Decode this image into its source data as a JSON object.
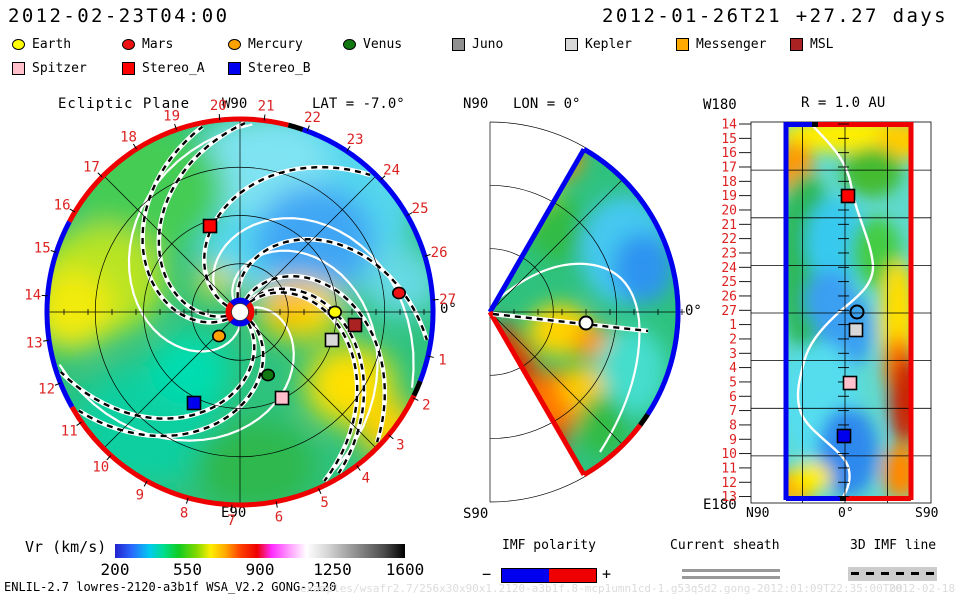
{
  "header": {
    "left_datetime": "2012-02-23T04:00",
    "right_datetime": "2012-01-26T21 +27.27 days"
  },
  "legend": {
    "row1": [
      {
        "label": "Earth",
        "color": "#ffff00",
        "shape": "circle"
      },
      {
        "label": "Mars",
        "color": "#ee1111",
        "shape": "circle"
      },
      {
        "label": "Mercury",
        "color": "#ffa200",
        "shape": "circle"
      },
      {
        "label": "Venus",
        "color": "#117711",
        "shape": "circle"
      },
      {
        "label": "Juno",
        "color": "#909090",
        "shape": "square"
      },
      {
        "label": "Kepler",
        "color": "#d8d8d8",
        "shape": "square"
      },
      {
        "label": "Messenger",
        "color": "#ffaa00",
        "shape": "square"
      },
      {
        "label": "MSL",
        "color": "#aa2222",
        "shape": "square"
      }
    ],
    "row2": [
      {
        "label": "Spitzer",
        "color": "#ffc0cb",
        "shape": "square"
      },
      {
        "label": "Stereo_A",
        "color": "#ff0000",
        "shape": "square"
      },
      {
        "label": "Stereo_B",
        "color": "#0000ee",
        "shape": "square"
      }
    ]
  },
  "panels": {
    "ecliptic": {
      "title": "Ecliptic Plane",
      "lat_label": "LAT = -7.0°",
      "top_label": "W90",
      "bottom_label": "E90",
      "zero_label": "0°",
      "days": [
        "1",
        "2",
        "3",
        "4",
        "5",
        "6",
        "7",
        "8",
        "9",
        "10",
        "11",
        "12",
        "13",
        "14",
        "15",
        "16",
        "17",
        "18",
        "19",
        "20",
        "21",
        "22",
        "23",
        "24",
        "25",
        "26",
        "27"
      ]
    },
    "meridional": {
      "top_label": "N90",
      "lon_label": "LON = 0°",
      "bottom_label": "S90",
      "zero_label": "0°"
    },
    "radial": {
      "title": "R = 1.0 AU",
      "top_left_label": "W180",
      "bottom_left_label": "E180",
      "x_labels": [
        "N90",
        "0°",
        "S90"
      ],
      "days": [
        "14",
        "15",
        "16",
        "17",
        "18",
        "19",
        "20",
        "21",
        "22",
        "23",
        "24",
        "25",
        "26",
        "27",
        "1",
        "2",
        "3",
        "4",
        "5",
        "6",
        "7",
        "8",
        "9",
        "10",
        "11",
        "12",
        "13"
      ]
    }
  },
  "colorbar": {
    "label": "Vr (km/s)",
    "ticks": [
      "200",
      "550",
      "900",
      "1250",
      "1600"
    ]
  },
  "legend2": {
    "imf_title": "IMF polarity",
    "minus": "−",
    "plus": "+",
    "sheath_title": "Current sheath",
    "imf_line_title": "3D IMF line"
  },
  "footer": {
    "model": "ENLIL-2.7 lowres-2120-a3b1f WSA_V2.2 GONG-2120",
    "watermark": "examples/wsafr2.7/256x30x90x1.2120-a3b1f.8-mcp1umn1cd-1.g53q5d2.gong-2012:01:09T22:35:00T00",
    "watermark_date": "2012-02-18"
  },
  "chart_data": [
    {
      "type": "heatmap",
      "id": "ecliptic_plane",
      "title": "Ecliptic Plane",
      "projection": "polar",
      "lat_deg": -7.0,
      "radial_range_au": [
        0,
        2
      ],
      "angular_axis": "day-of-rotation labels 1-27, 0° reference toward Earth at right",
      "quantity": "Vr",
      "units": "km/s",
      "value_range": [
        200,
        1600
      ],
      "rim_polarity_segments": [
        {
          "days": "15.8-21.5",
          "polarity": "+",
          "color": "#ee0000"
        },
        {
          "days": "21.9-1.6",
          "polarity": "−",
          "color": "#0000ee"
        },
        {
          "days": "2.0-11.4",
          "polarity": "+",
          "color": "#ee0000"
        },
        {
          "days": "11.4-15.8",
          "polarity": "−",
          "color": "#0000ee"
        }
      ],
      "markers": [
        {
          "name": "Earth",
          "r_au": 1.0,
          "angle_deg": 0
        },
        {
          "name": "Mars",
          "r_au": 1.66,
          "angle_deg": -7
        },
        {
          "name": "Mercury",
          "r_au": 0.33,
          "angle_deg": 131
        },
        {
          "name": "Venus",
          "r_au": 0.71,
          "angle_deg": 66
        },
        {
          "name": "Kepler",
          "r_au": 1.0,
          "angle_deg": 17
        },
        {
          "name": "MSL",
          "r_au": 1.2,
          "angle_deg": 6
        },
        {
          "name": "Spitzer",
          "r_au": 0.99,
          "angle_deg": 64
        },
        {
          "name": "Stereo_A",
          "r_au": 0.94,
          "angle_deg": -109
        },
        {
          "name": "Stereo_B",
          "r_au": 1.06,
          "angle_deg": 117
        }
      ],
      "features": [
        "Parker-spiral 3D IMF lines (black dashed on white)",
        "current sheath contours (solid white)",
        "slow wind 200-450 km/s (blue/cyan) in NE sector",
        "fast streams 650-800 km/s (yellow/orange) near Earth line and W limb"
      ]
    },
    {
      "type": "heatmap",
      "id": "meridional_plane",
      "lon_deg": 0,
      "projection": "polar half-disk",
      "simulated_lat_extent_deg": [
        -60,
        60
      ],
      "quantity": "Vr",
      "units": "km/s",
      "value_range": [
        200,
        1600
      ],
      "markers": [
        {
          "name": "Earth",
          "r_au": 1.0,
          "lat_deg": -7
        }
      ],
      "features": [
        "fast wind 800-1000 km/s (red/orange) southern sector",
        "slow wind (blue) northern outer sector",
        "yellow stream on equator at Earth",
        "blue rim = negative polarity N, red rim = positive polarity S"
      ]
    },
    {
      "type": "heatmap",
      "id": "radial_slice",
      "r_au": 1.0,
      "x_axis": "heliolatitude N90 to S90",
      "y_axis": "time/longitude, day labels 14..27,1..13 (W180 top, E180 bottom)",
      "quantity": "Vr",
      "units": "km/s",
      "value_range": [
        200,
        1600
      ],
      "markers": [
        {
          "name": "Stereo_A",
          "day": 19,
          "lat_deg": 0
        },
        {
          "name": "Earth",
          "day": 27,
          "lat_deg": -7
        },
        {
          "name": "Kepler",
          "day": 1,
          "lat_deg": 5
        },
        {
          "name": "Spitzer",
          "day": 5,
          "lat_deg": 2
        },
        {
          "name": "Stereo_B",
          "day": 9,
          "lat_deg": 0
        }
      ],
      "features": [
        "white current sheath curve meandering about 0° latitude",
        "fast red wind 900+ km/s at southern flank",
        "slow blue wind 300 km/s mid-panel",
        "left border blue (−), top/right borders red (+)"
      ]
    },
    {
      "type": "colorbar",
      "label": "Vr (km/s)",
      "range": [
        200,
        1600
      ],
      "ticks": [
        200,
        550,
        900,
        1250,
        1600
      ],
      "colors": [
        "#2222cc at 200",
        "cyan ~420",
        "green ~550",
        "yellow ~680",
        "red ~850",
        "magenta ~950",
        "white ~1080",
        "gray ramp",
        "#000000 at 1600"
      ]
    }
  ]
}
